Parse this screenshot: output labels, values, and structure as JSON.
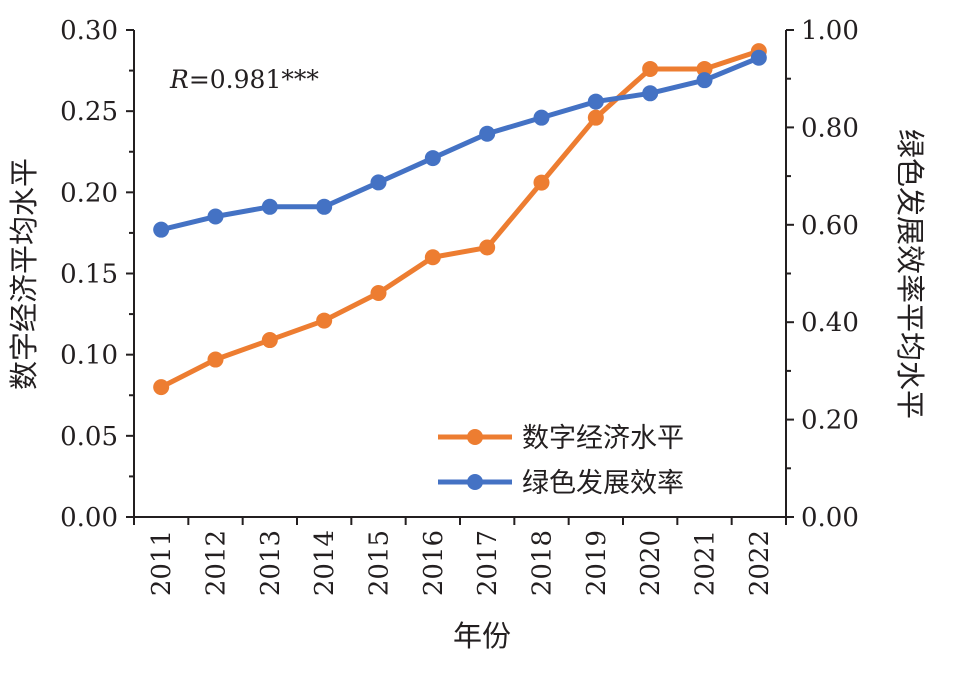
{
  "chart_data": {
    "type": "line",
    "categories": [
      "2011",
      "2012",
      "2013",
      "2014",
      "2015",
      "2016",
      "2017",
      "2018",
      "2019",
      "2020",
      "2021",
      "2022"
    ],
    "xlabel": "年份",
    "ylabel_left": "数字经济平均水平",
    "ylabel_right": "绿色发展效率平均水平",
    "ylim_left": [
      0,
      0.3
    ],
    "ylim_right": [
      0,
      1.0
    ],
    "yticks_left": [
      "0.00",
      "0.05",
      "0.10",
      "0.15",
      "0.20",
      "0.25",
      "0.30"
    ],
    "yticks_right": [
      "0.00",
      "0.20",
      "0.40",
      "0.60",
      "0.80",
      "1.00"
    ],
    "annotation": {
      "italic": "R",
      "rest": "=0.981***"
    },
    "grid": false,
    "legend_position": "bottom-right",
    "series": [
      {
        "name": "数字经济水平",
        "axis": "left",
        "color": "#ed7d31",
        "values": [
          0.08,
          0.097,
          0.109,
          0.121,
          0.138,
          0.16,
          0.166,
          0.206,
          0.246,
          0.276,
          0.276,
          0.287
        ]
      },
      {
        "name": "绿色发展效率",
        "axis": "right",
        "color": "#4472c4",
        "values": [
          0.59,
          0.617,
          0.637,
          0.637,
          0.687,
          0.737,
          0.787,
          0.82,
          0.853,
          0.87,
          0.897,
          0.943
        ]
      }
    ]
  }
}
